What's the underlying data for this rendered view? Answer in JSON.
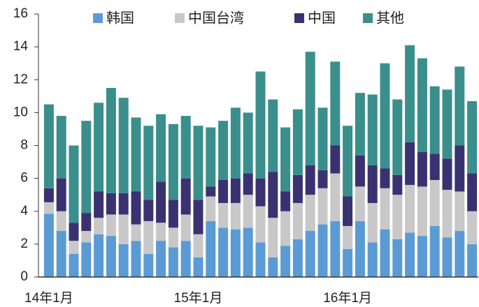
{
  "chart_data": {
    "type": "stacked_bar",
    "categories": [
      "14年1月",
      null,
      null,
      null,
      null,
      null,
      null,
      null,
      null,
      null,
      null,
      null,
      "15年1月",
      null,
      null,
      null,
      null,
      null,
      null,
      null,
      null,
      null,
      null,
      null,
      "16年1月",
      null,
      null,
      null,
      null,
      null,
      null,
      null,
      null,
      null,
      null
    ],
    "series": [
      {
        "name": "韩国",
        "color": "#5b9bd5",
        "values": [
          3.85,
          2.8,
          1.4,
          2.1,
          2.6,
          2.5,
          2.0,
          2.2,
          1.4,
          2.2,
          1.8,
          2.2,
          1.2,
          3.4,
          3.0,
          2.9,
          3.0,
          2.1,
          1.2,
          1.9,
          2.3,
          2.8,
          3.2,
          3.4,
          1.7,
          3.4,
          2.1,
          2.9,
          2.3,
          2.7,
          2.5,
          3.1,
          2.4,
          2.8,
          2.0
        ]
      },
      {
        "name": "中国台湾",
        "color": "#c8c8c8",
        "values": [
          0.7,
          1.2,
          0.8,
          0.7,
          1.0,
          1.3,
          1.8,
          1.0,
          2.0,
          1.1,
          1.2,
          1.6,
          1.4,
          1.5,
          1.5,
          1.6,
          2.0,
          2.2,
          2.4,
          2.1,
          2.2,
          2.2,
          2.2,
          2.9,
          1.4,
          2.1,
          2.4,
          2.5,
          2.7,
          2.9,
          3.0,
          2.8,
          2.9,
          2.4,
          2.0
        ]
      },
      {
        "name": "中国",
        "color": "#3a3270",
        "values": [
          0.85,
          2.0,
          1.1,
          1.1,
          1.6,
          1.3,
          1.3,
          2.0,
          1.3,
          2.5,
          1.7,
          2.2,
          2.1,
          0.6,
          1.4,
          1.5,
          1.3,
          1.7,
          2.8,
          1.2,
          1.7,
          1.8,
          1.1,
          1.7,
          1.8,
          1.9,
          2.3,
          1.2,
          1.2,
          2.6,
          2.1,
          1.6,
          1.9,
          2.8,
          2.3
        ]
      },
      {
        "name": "其他",
        "color": "#3a8f8c",
        "values": [
          5.1,
          3.8,
          4.7,
          5.6,
          5.4,
          6.4,
          5.8,
          4.5,
          4.5,
          4.1,
          4.6,
          3.8,
          4.5,
          3.6,
          3.6,
          4.3,
          3.7,
          6.5,
          4.4,
          3.9,
          4.0,
          6.9,
          3.8,
          5.1,
          4.3,
          3.8,
          4.3,
          6.4,
          4.6,
          5.9,
          5.7,
          4.1,
          4.2,
          4.8,
          4.4
        ]
      }
    ],
    "ylim": [
      0,
      16
    ],
    "yticks": [
      0,
      2,
      4,
      6,
      8,
      10,
      12,
      14,
      16
    ]
  }
}
